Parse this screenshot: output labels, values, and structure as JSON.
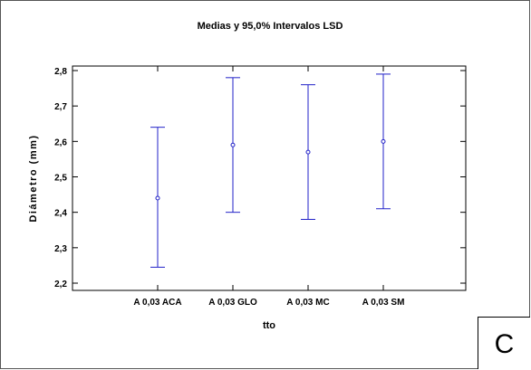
{
  "chart_data": {
    "type": "interval",
    "title": "Medias y 95,0% Intervalos LSD",
    "xlabel": "tto",
    "ylabel": "Diámetro (mm)",
    "ylim": [
      2.2,
      2.8
    ],
    "yticks": [
      "2,2",
      "2,3",
      "2,4",
      "2,5",
      "2,6",
      "2,7",
      "2,8"
    ],
    "categories": [
      "A 0,03 ACA",
      "A 0,03 GLO",
      "A 0,03 MC",
      "A 0,03 SM"
    ],
    "means": [
      2.44,
      2.59,
      2.57,
      2.6
    ],
    "lower": [
      2.245,
      2.4,
      2.38,
      2.41
    ],
    "upper": [
      2.64,
      2.78,
      2.76,
      2.79
    ],
    "grid": false,
    "interval_color": "#2020c8",
    "axis_color": "#000000"
  },
  "panel_label": "C"
}
